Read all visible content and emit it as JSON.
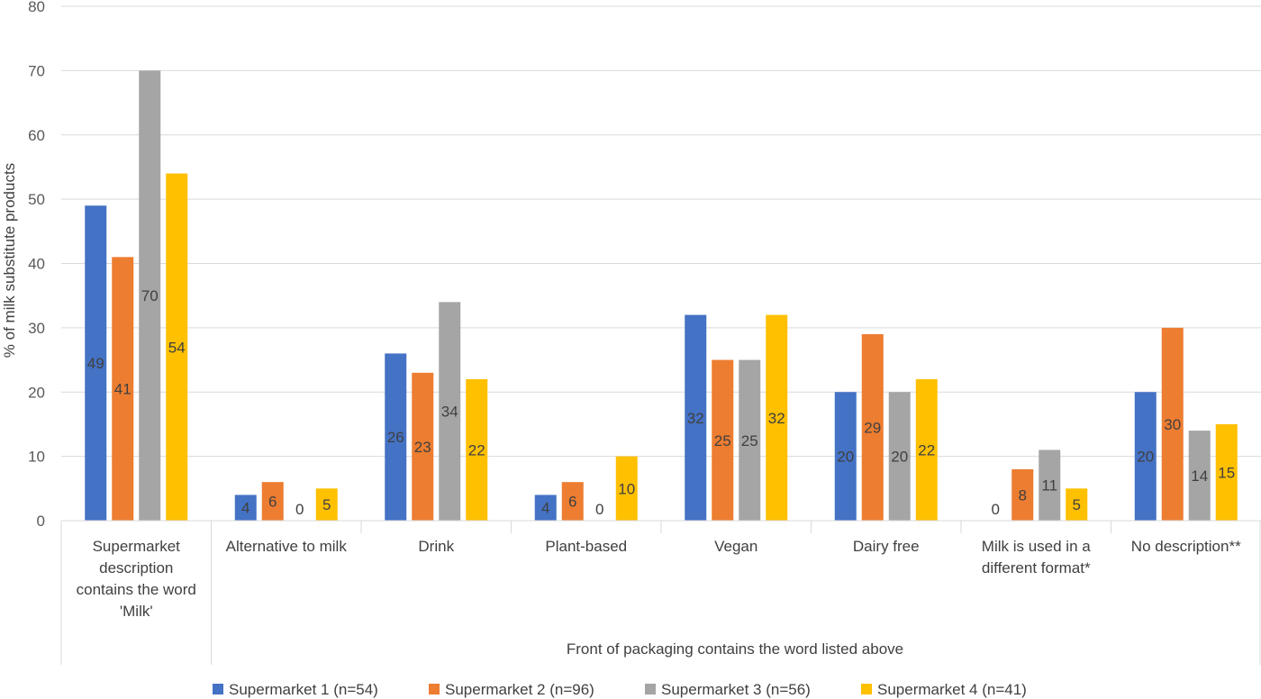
{
  "chart_data": {
    "type": "bar",
    "title": "",
    "ylabel": "% of milk substitute products",
    "xlabel": "Front of packaging contains the word listed above",
    "ylim": [
      0,
      80
    ],
    "yticks": [
      0,
      10,
      20,
      30,
      40,
      50,
      60,
      70,
      80
    ],
    "grid": true,
    "legend_position": "bottom",
    "categories": [
      [
        "Supermarket",
        "description",
        "contains the word",
        "'Milk'"
      ],
      [
        "Alternative to milk"
      ],
      [
        "Drink"
      ],
      [
        "Plant-based"
      ],
      [
        "Vegan"
      ],
      [
        "Dairy free"
      ],
      [
        "Milk is used in a",
        "different format*"
      ],
      [
        "No description**"
      ]
    ],
    "series": [
      {
        "name": "Supermarket 1 (n=54)",
        "color": "#4472C4",
        "values": [
          49,
          4,
          26,
          4,
          32,
          20,
          0,
          20
        ]
      },
      {
        "name": "Supermarket 2 (n=96)",
        "color": "#ED7D31",
        "values": [
          41,
          6,
          23,
          6,
          25,
          29,
          8,
          30
        ]
      },
      {
        "name": "Supermarket 3 (n=56)",
        "color": "#A5A5A5",
        "values": [
          70,
          0,
          34,
          0,
          25,
          20,
          11,
          14
        ]
      },
      {
        "name": "Supermarket 4 (n=41)",
        "color": "#FFC000",
        "values": [
          54,
          5,
          22,
          10,
          32,
          22,
          5,
          15
        ]
      }
    ]
  }
}
